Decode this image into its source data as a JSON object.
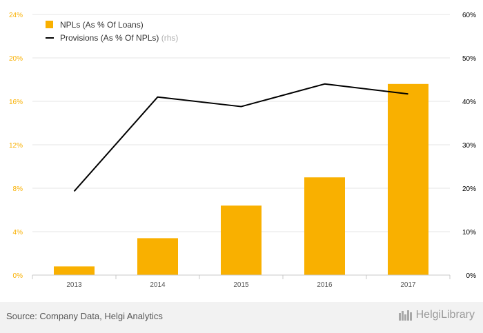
{
  "chart_data": {
    "type": "bar+line",
    "categories": [
      "2013",
      "2014",
      "2015",
      "2016",
      "2017"
    ],
    "series": [
      {
        "name": "NPLs (As % Of Loans)",
        "type": "bar",
        "axis": "left",
        "values": [
          0.8,
          3.4,
          6.4,
          9.0,
          17.6
        ],
        "color": "#f9b000"
      },
      {
        "name": "Provisions (As % Of NPLs)",
        "suffix": "(rhs)",
        "type": "line",
        "axis": "right",
        "values": [
          19.3,
          41.0,
          38.8,
          44.0,
          41.7
        ],
        "color": "#000000"
      }
    ],
    "left_axis": {
      "min": 0,
      "max": 24,
      "ticks": [
        "0%",
        "4%",
        "8%",
        "12%",
        "16%",
        "20%",
        "24%"
      ],
      "color": "#f9b000"
    },
    "right_axis": {
      "min": 0,
      "max": 60,
      "ticks": [
        "0%",
        "10%",
        "20%",
        "30%",
        "40%",
        "50%",
        "60%"
      ],
      "color": "#000000"
    },
    "legend_position": "top-left",
    "grid": true
  },
  "footer": {
    "source": "Source: Company Data, Helgi Analytics",
    "brand": "HelgiLibrary"
  }
}
